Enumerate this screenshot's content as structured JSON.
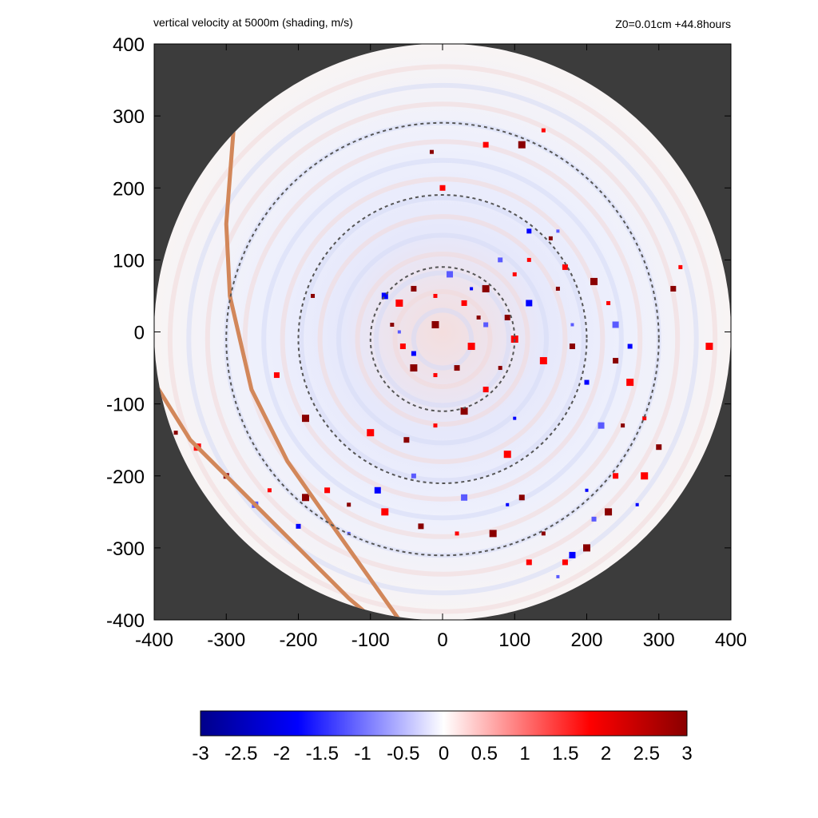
{
  "title_left": "vertical velocity at 5000m (shading, m/s)",
  "title_right": "Z0=0.01cm  +44.8hours",
  "colors": {
    "background_outside": "#3c3c3c",
    "negative_max": "#00008a",
    "negative": "#0000ff",
    "zero": "#ffffff",
    "positive": "#ff0000",
    "positive_max": "#8a0000",
    "track": "#d2875a",
    "rings": "#555555"
  },
  "chart_data": {
    "type": "heatmap",
    "title": "vertical velocity at 5000m (shading, m/s)",
    "annotation": "Z0=0.01cm  +44.8hours",
    "xlim": [
      -400,
      400
    ],
    "ylim": [
      -400,
      400
    ],
    "x_ticks": [
      "-400",
      "-300",
      "-200",
      "-100",
      "0",
      "100",
      "200",
      "300",
      "400"
    ],
    "y_ticks": [
      "400",
      "300",
      "200",
      "100",
      "0",
      "-100",
      "-200",
      "-300",
      "-400"
    ],
    "x_tick_values": [
      -400,
      -300,
      -200,
      -100,
      0,
      100,
      200,
      300,
      400
    ],
    "y_tick_values": [
      400,
      300,
      200,
      100,
      0,
      -100,
      -200,
      -300,
      -400
    ],
    "domain_radius": 400,
    "reference_rings": [
      100,
      200,
      300
    ],
    "ring_center": [
      0,
      -10
    ],
    "colorbar": {
      "range": [
        -3,
        3
      ],
      "ticks": [
        "-3",
        "-2.5",
        "-2",
        "-1.5",
        "-1",
        "-0.5",
        "0",
        "0.5",
        "1",
        "1.5",
        "2",
        "2.5",
        "3"
      ],
      "tick_values": [
        -3,
        -2.5,
        -2,
        -1.5,
        -1,
        -0.5,
        0,
        0.5,
        1,
        1.5,
        2,
        2.5,
        3
      ]
    },
    "tracks": [
      {
        "points": [
          [
            -290,
            280
          ],
          [
            -300,
            150
          ],
          [
            -295,
            50
          ],
          [
            -265,
            -80
          ],
          [
            -215,
            -180
          ],
          [
            -145,
            -280
          ],
          [
            -60,
            -400
          ]
        ]
      },
      {
        "points": [
          [
            -400,
            -70
          ],
          [
            -350,
            -150
          ],
          [
            -280,
            -220
          ],
          [
            -200,
            -300
          ],
          [
            -130,
            -370
          ],
          [
            -95,
            -400
          ]
        ]
      }
    ],
    "updraft_cells": [
      [
        -10,
        50
      ],
      [
        -40,
        60
      ],
      [
        -60,
        40
      ],
      [
        -70,
        10
      ],
      [
        -55,
        -20
      ],
      [
        -40,
        -50
      ],
      [
        -10,
        -60
      ],
      [
        20,
        -50
      ],
      [
        40,
        -20
      ],
      [
        50,
        20
      ],
      [
        30,
        40
      ],
      [
        60,
        60
      ],
      [
        100,
        80
      ],
      [
        90,
        20
      ],
      [
        100,
        -10
      ],
      [
        80,
        -50
      ],
      [
        60,
        -80
      ],
      [
        30,
        -110
      ],
      [
        -10,
        -130
      ],
      [
        -50,
        -150
      ],
      [
        -100,
        -140
      ],
      [
        150,
        130
      ],
      [
        170,
        90
      ],
      [
        210,
        70
      ],
      [
        230,
        40
      ],
      [
        240,
        -40
      ],
      [
        260,
        -70
      ],
      [
        250,
        -130
      ],
      [
        240,
        -200
      ],
      [
        230,
        -250
      ],
      [
        280,
        -120
      ],
      [
        300,
        -160
      ],
      [
        280,
        -200
      ],
      [
        140,
        -280
      ],
      [
        120,
        -320
      ],
      [
        70,
        -280
      ],
      [
        20,
        -280
      ],
      [
        -30,
        -270
      ],
      [
        -80,
        -250
      ],
      [
        -130,
        -240
      ],
      [
        -160,
        -220
      ],
      [
        -190,
        -230
      ],
      [
        -240,
        -220
      ],
      [
        -300,
        -200
      ],
      [
        -340,
        -160
      ],
      [
        -370,
        -140
      ],
      [
        170,
        -320
      ],
      [
        200,
        -300
      ],
      [
        330,
        90
      ],
      [
        320,
        60
      ],
      [
        370,
        -20
      ],
      [
        -15,
        250
      ],
      [
        60,
        260
      ],
      [
        110,
        260
      ],
      [
        140,
        280
      ],
      [
        180,
        -20
      ],
      [
        140,
        -40
      ],
      [
        160,
        60
      ],
      [
        0,
        200
      ],
      [
        -10,
        10
      ],
      [
        120,
        100
      ],
      [
        110,
        -230
      ],
      [
        90,
        -170
      ],
      [
        -180,
        50
      ],
      [
        -230,
        -60
      ],
      [
        -190,
        -120
      ]
    ],
    "downdraft_cells": [
      [
        -60,
        0
      ],
      [
        -40,
        -30
      ],
      [
        10,
        80
      ],
      [
        40,
        60
      ],
      [
        80,
        100
      ],
      [
        120,
        40
      ],
      [
        180,
        10
      ],
      [
        200,
        -70
      ],
      [
        220,
        -130
      ],
      [
        200,
        -220
      ],
      [
        210,
        -260
      ],
      [
        180,
        -310
      ],
      [
        160,
        -340
      ],
      [
        260,
        -20
      ],
      [
        240,
        10
      ],
      [
        270,
        -240
      ],
      [
        -40,
        -200
      ],
      [
        -90,
        -220
      ],
      [
        -130,
        -280
      ],
      [
        -200,
        -270
      ],
      [
        -260,
        -240
      ],
      [
        100,
        -120
      ],
      [
        60,
        10
      ],
      [
        -80,
        50
      ],
      [
        160,
        140
      ],
      [
        120,
        140
      ],
      [
        30,
        -230
      ],
      [
        90,
        -240
      ]
    ]
  }
}
